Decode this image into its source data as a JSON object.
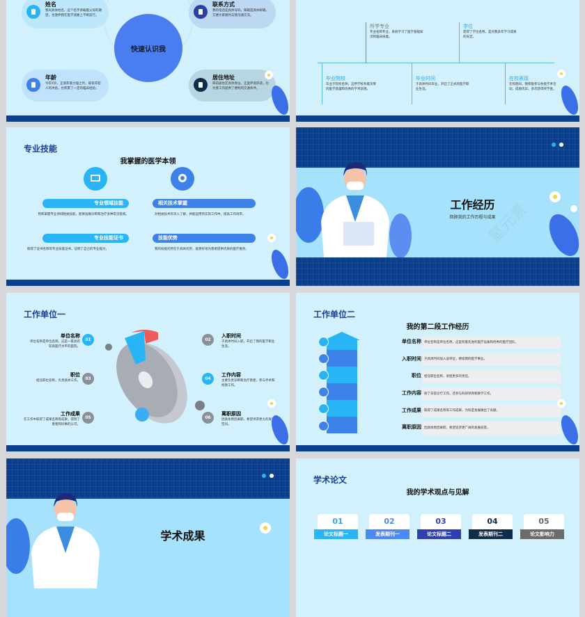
{
  "slide_intro": {
    "center_title": "快速认识我",
    "items": [
      {
        "title": "姓名",
        "text": "我叫具体姓名，这个名字承载着父母的期望，也激伸我在医学道路上不断前行。"
      },
      {
        "title": "联系方式",
        "text": "我的电话是具体号码，邮箱是具体邮箱，方便大家随时与我沟通交流。"
      },
      {
        "title": "年龄",
        "text": "今年X岁，正值年富力强之时，既有年轻人的冲劲，也积累了一定的临床经验。"
      },
      {
        "title": "居住地址",
        "text": "目前居住在具体地址，这里环境舒适，也为我工作提供了便利的交通条件。"
      }
    ],
    "colors": {
      "center": "#4a7ef0",
      "icon1": "#29b5f5",
      "icon2": "#2a3f9f",
      "icon3": "#3d82e8",
      "icon4": "#0d2d4a"
    }
  },
  "slide_education": {
    "top": [
      {
        "title": "所学专业",
        "text": "专业名称专业，系统学习了医学基础知识和临床技能。"
      },
      {
        "title": "学位",
        "text": "获得了学位名称，是对我多年学习成果的肯定。"
      }
    ],
    "bottom": [
      {
        "title": "毕业院校",
        "text": "毕业于院校名称，这所学校有着深厚的医学底蕴和优秀的学术氛围。"
      },
      {
        "title": "毕业时间",
        "text": "于具体时间毕业，开启了正式的医学职业生涯。"
      },
      {
        "title": "在校表现",
        "text": "在校期间，我积极参与各类学术活动，成绩优异，多次获得奖学金。"
      }
    ]
  },
  "slide_skills": {
    "title": "专业技能",
    "subtitle": "我掌握的医学本领",
    "icons": [
      "image-icon",
      "camera-icon"
    ],
    "items": [
      {
        "label": "专业领域技能",
        "text": "熟练掌握专业领域相关技能，能够准确诊断和治疗多种常见疾病。"
      },
      {
        "label": "相关技术掌握",
        "text": "对相关技术有深入了解，并能运用到实际工作中，提高工作效率。"
      },
      {
        "label": "专业技能证书",
        "text": "取得了证书名称等专业技能证书，证明了自己的专业能力。"
      },
      {
        "label": "技能优势",
        "text": "我的技能优势在于具体优势，能更好地为患者提供优质的医疗服务。"
      }
    ]
  },
  "slide_work_section": {
    "title": "工作经历",
    "subtitle": "回顾我的工作历程与成果",
    "watermark": "氢元素"
  },
  "slide_work1": {
    "title": "工作单位一",
    "items": [
      {
        "num": "01",
        "title": "单位名称",
        "text": "单位名称是单位名称，这是一家具有较高医疗水平的医院。"
      },
      {
        "num": "02",
        "title": "入职时间",
        "text": "于具体时间入职，开启了我的医学职业生涯。"
      },
      {
        "num": "03",
        "title": "职位",
        "text": "担任职位名称，负责具体工作。"
      },
      {
        "num": "04",
        "title": "工作内容",
        "text": "主要负责诊断和治疗患者，参与手术和抢救工作。"
      },
      {
        "num": "05",
        "title": "工作成果",
        "text": "在工作中取得了成果名称等成果，得到了患者和同事的认可。"
      },
      {
        "num": "06",
        "title": "离职原因",
        "text": "因具体原因离职，希望寻求更大的发展空间。"
      }
    ]
  },
  "slide_work2": {
    "title": "工作单位二",
    "subtitle": "我的第二段工作经历",
    "rows": [
      {
        "label": "单位名称",
        "text": "单位名称是单位名称，这里有着先进的医疗设备和优秀的医疗团队。",
        "icon": "cloud-icon"
      },
      {
        "label": "入职时间",
        "text": "于具体时间加入该单位，继续我的医学事业。",
        "icon": "home-icon"
      },
      {
        "label": "职位",
        "text": "担任职位名称，承担更多的责任。",
        "icon": "car-icon"
      },
      {
        "label": "工作内容",
        "text": "除了日常诊疗工作，还参与科研项目和教学工作。",
        "icon": "hat-icon"
      },
      {
        "label": "工作成果",
        "text": "取得了成果名称等工作成果，为科室发展做出了贡献。",
        "icon": "presentation-icon"
      },
      {
        "label": "离职原因",
        "text": "因具体原因离职，希望追求更广阔的发展前景。",
        "icon": "handshake-icon"
      }
    ]
  },
  "slide_academic_section": {
    "title": "学术成果"
  },
  "slide_papers": {
    "title": "学术论文",
    "subtitle": "我的学术观点与见解",
    "cards": [
      {
        "num": "01",
        "label": "论文标题一",
        "color": "#29b5f5"
      },
      {
        "num": "02",
        "label": "发表期刊一",
        "color": "#4a8af0"
      },
      {
        "num": "03",
        "label": "论文标题二",
        "color": "#2f3fb0"
      },
      {
        "num": "04",
        "label": "发表期刊二",
        "color": "#0d2d4a"
      },
      {
        "num": "05",
        "label": "论文影响力",
        "color": "#6b6b6b"
      }
    ]
  }
}
